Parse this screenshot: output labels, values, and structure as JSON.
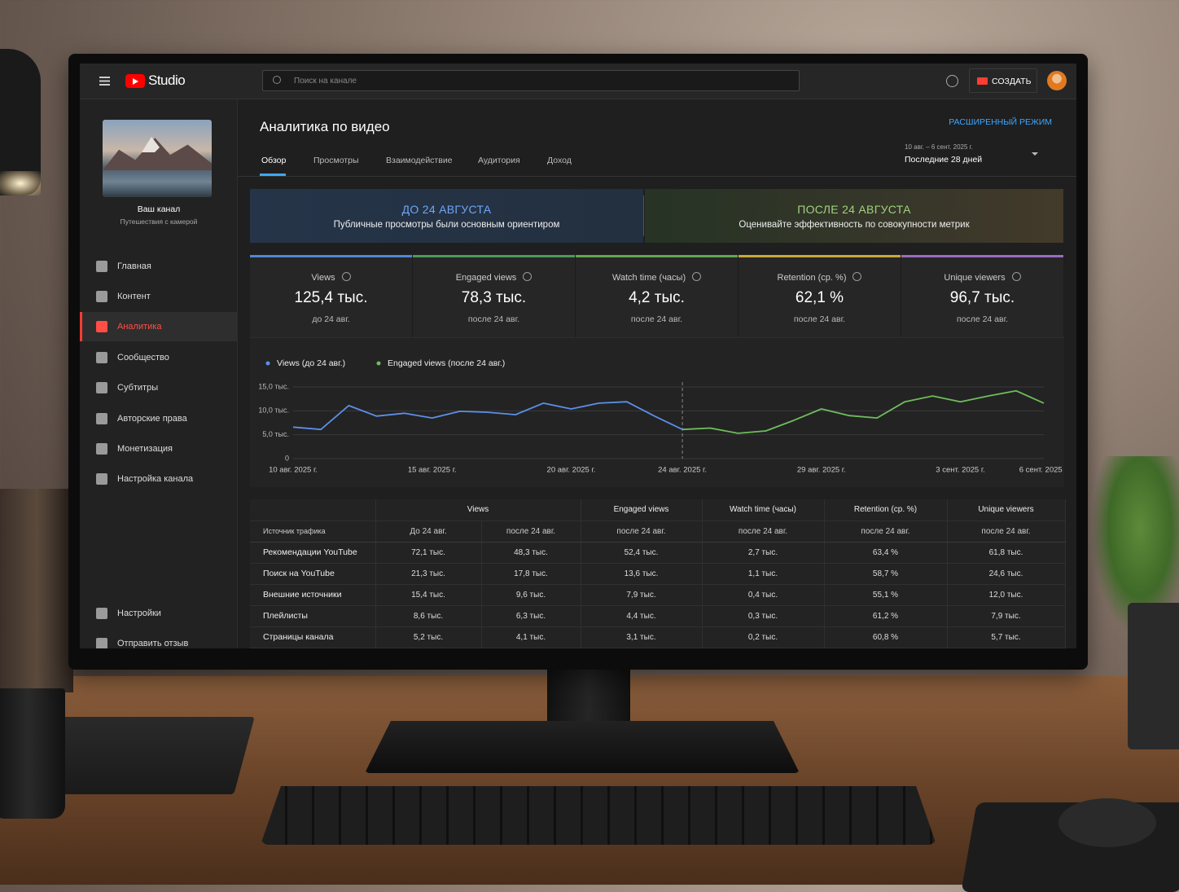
{
  "header": {
    "logo": "Studio",
    "search_placeholder": "Поиск на канале",
    "create_button": "СОЗДАТЬ"
  },
  "sidebar": {
    "channel_name": "Ваш канал",
    "channel_subtitle": "Путешествия с камерой",
    "nav": [
      "Главная",
      "Контент",
      "Аналитика",
      "Сообщество",
      "Субтитры",
      "Авторские права",
      "Монетизация",
      "Настройка канала"
    ],
    "bottom_nav": [
      "Настройки",
      "Отправить отзыв"
    ]
  },
  "page": {
    "title": "Аналитика по видео",
    "advanced_mode": "РАСШИРЕННЫЙ РЕЖИМ",
    "tabs": [
      "Обзор",
      "Просмотры",
      "Взаимодействие",
      "Аудитория",
      "Доход"
    ],
    "date_range": "10 авг. – 6 сент. 2025 г.",
    "date_preset": "Последние 28 дней"
  },
  "banners": [
    {
      "title": "ДО 24 АВГУСТА",
      "text": "Публичные просмотры были основным ориентиром"
    },
    {
      "title": "ПОСЛЕ 24 АВГУСТА",
      "text": "Оценивайте эффективность по совокупности метрик"
    }
  ],
  "kpis": [
    {
      "label": "Views",
      "value": "125,4 тыс.",
      "note": "до 24 авг."
    },
    {
      "label": "Engaged views",
      "value": "78,3 тыс.",
      "note": "после 24 авг."
    },
    {
      "label": "Watch time (часы)",
      "value": "4,2 тыс.",
      "note": "после 24 авг."
    },
    {
      "label": "Retention (ср. %)",
      "value": "62,1  %",
      "note": "после 24 авг."
    },
    {
      "label": "Unique viewers",
      "value": "96,7 тыс.",
      "note": "после 24 авг."
    }
  ],
  "chart_data": {
    "type": "line",
    "legend": "top-left",
    "grid": true,
    "categories": [
      "10 авг. 2025 г.",
      null,
      null,
      null,
      null,
      "15 авг. 2025 г.",
      null,
      null,
      null,
      null,
      "20 авг. 2025 г.",
      null,
      null,
      null,
      "24 авг. 2025 г.",
      null,
      null,
      null,
      null,
      "29 авг. 2025 г.",
      null,
      null,
      null,
      null,
      "3 сент. 2025 г.",
      null,
      null,
      "6 сент. 2025 г."
    ],
    "ylim": [
      0,
      15000
    ],
    "yticks": [
      0,
      {
        "value": 5000,
        "label": "5,0 тыс."
      },
      {
        "value": 10000,
        "label": "10,0 тыс."
      },
      {
        "value": 15000,
        "label": "15,0 тыс."
      }
    ],
    "series": [
      {
        "name": "Views (до 24 авг.)",
        "color": "#5b8fe8",
        "values": [
          6600,
          6100,
          11100,
          8900,
          9500,
          8500,
          9900,
          9700,
          9200,
          11600,
          10400,
          11600,
          11900,
          8900,
          6100,
          null,
          null,
          null,
          null,
          null,
          null,
          null,
          null,
          null,
          null,
          null,
          null,
          null
        ]
      },
      {
        "name": "Engaged views (после 24 авг.)",
        "color": "#6ebd5c",
        "values": [
          null,
          null,
          null,
          null,
          null,
          null,
          null,
          null,
          null,
          null,
          null,
          null,
          null,
          null,
          6100,
          6400,
          5300,
          5800,
          8000,
          10400,
          9000,
          8500,
          11900,
          13100,
          11900,
          13100,
          14200,
          11600
        ]
      }
    ]
  },
  "table": {
    "header": [
      "Views",
      "Engaged views",
      "Watch time (часы)",
      "Retention (ср. %)",
      "Unique viewers"
    ],
    "subheader": [
      "Источник трафика",
      "До 24 авг.",
      "после 24 авг.",
      "после 24 авг.",
      "после 24 авг.",
      "после 24 авг.",
      "после 24 авг."
    ],
    "rows": [
      [
        "Рекомендации YouTube",
        "72,1 тыс.",
        "48,3 тыс.",
        "52,4 тыс.",
        "2,7 тыс.",
        "63,4  %",
        "61,8 тыс."
      ],
      [
        "Поиск на YouTube",
        "21,3 тыс.",
        "17,8 тыс.",
        "13,6 тыс.",
        "1,1 тыс.",
        "58,7  %",
        "24,6 тыс."
      ],
      [
        "Внешние источники",
        "15,4 тыс.",
        "9,6 тыс.",
        "7,9 тыс.",
        "0,4 тыс.",
        "55,1  %",
        "12,0 тыс."
      ],
      [
        "Плейлисты",
        "8,6 тыс.",
        "6,3 тыс.",
        "4,4 тыс.",
        "0,3 тыс.",
        "61,2  %",
        "7,9 тыс."
      ],
      [
        "Страницы канала",
        "5,2 тыс.",
        "4,1 тыс.",
        "3,1 тыс.",
        "0,2 тыс.",
        "60,8  %",
        "5,7 тыс."
      ]
    ]
  }
}
